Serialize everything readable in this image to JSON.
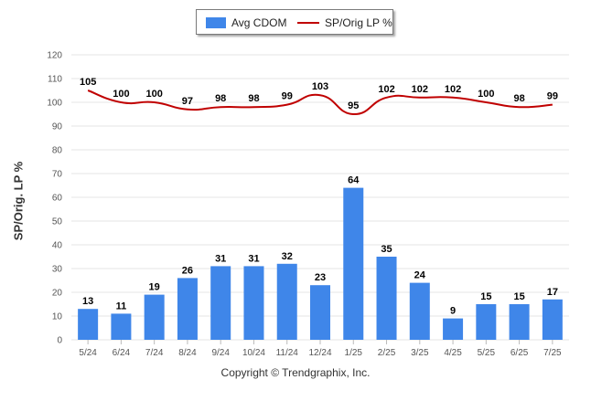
{
  "legend": {
    "bar_label": "Avg CDOM",
    "line_label": "SP/Orig LP %"
  },
  "y_axis_title": "SP/Orig. LP %",
  "footer": "Copyright © Trendgraphix, Inc.",
  "colors": {
    "bar": "#3f86e9",
    "line": "#c00000",
    "grid": "#e6e6e6",
    "axis_text": "#555555",
    "label_text": "#000000"
  },
  "chart_data": {
    "type": "bar",
    "title": "",
    "xlabel": "",
    "ylabel": "SP/Orig. LP %",
    "ylim": [
      0,
      120
    ],
    "yticks": [
      0,
      10,
      20,
      30,
      40,
      50,
      60,
      70,
      80,
      90,
      100,
      110,
      120
    ],
    "grid": true,
    "legend_position": "top-center",
    "categories": [
      "5/24",
      "6/24",
      "7/24",
      "8/24",
      "9/24",
      "10/24",
      "11/24",
      "12/24",
      "1/25",
      "2/25",
      "3/25",
      "4/25",
      "5/25",
      "6/25",
      "7/25"
    ],
    "series": [
      {
        "name": "Avg CDOM",
        "type": "bar",
        "values": [
          13,
          11,
          19,
          26,
          31,
          31,
          32,
          23,
          64,
          35,
          24,
          9,
          15,
          15,
          17
        ]
      },
      {
        "name": "SP/Orig LP %",
        "type": "line",
        "values": [
          105,
          100,
          100,
          97,
          98,
          98,
          99,
          103,
          95,
          102,
          102,
          102,
          100,
          98,
          99
        ]
      }
    ]
  }
}
